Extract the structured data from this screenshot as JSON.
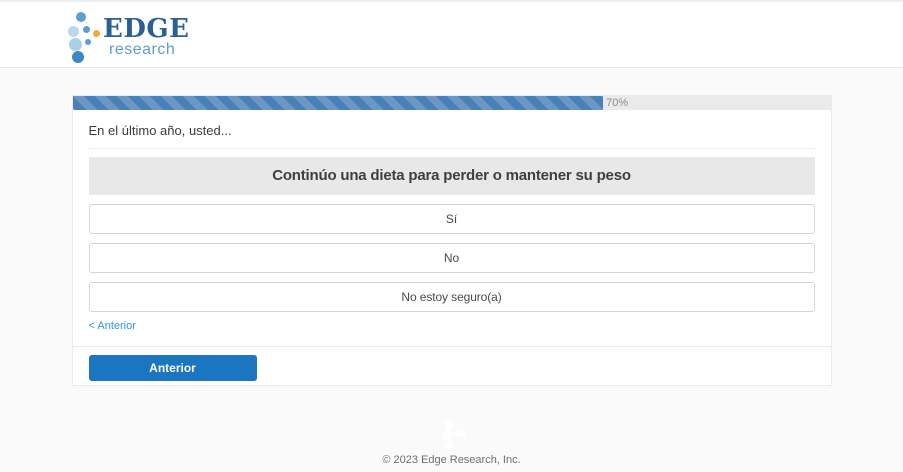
{
  "header": {
    "logo": {
      "title": "EDGE",
      "subtitle": "research"
    }
  },
  "progress": {
    "percent": 70,
    "label": "70%",
    "fill_style": "width:70%"
  },
  "survey": {
    "intro": "En el último año, usted...",
    "question": "Continúo una dieta para perder o mantener su peso",
    "options": [
      {
        "label": "Sí"
      },
      {
        "label": "No"
      },
      {
        "label": "No estoy seguro(a)"
      }
    ],
    "back_link": "< Anterior",
    "back_button": "Anterior"
  },
  "footer": {
    "copyright": "© 2023 Edge Research, Inc."
  },
  "colors": {
    "progress_fill": "#4a80b8",
    "progress_track": "#eaeaea",
    "button_blue": "#1b75c0",
    "link_blue": "#2b96d9",
    "logo_dark_blue": "#2a6094",
    "logo_light_blue": "#5f9bd3",
    "logo_orange": "#f2a73b",
    "question_bar_bg": "#e8e8e8",
    "page_bg": "#fafafa"
  }
}
